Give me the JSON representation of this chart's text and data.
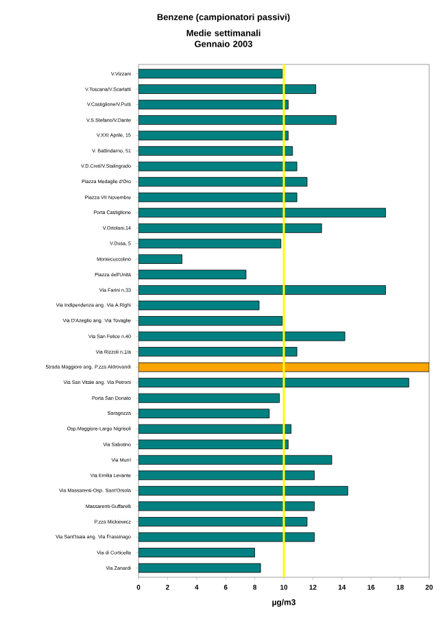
{
  "chart_data": {
    "type": "bar",
    "orientation": "horizontal",
    "title": "Benzene (campionatori passivi)",
    "subtitle": "Medie settimanali Gennaio 2003",
    "xlabel": "µg/m3",
    "categories": [
      "V.Vizzani",
      "V.Toscana/V.Scarlatti",
      "V.Castiglione/V.Putti",
      "V.S.Stefano/V.Dante",
      "V.XXI Aprile, 15",
      "V. Battindarno, 51",
      "V.D.Creti/V.Stalingrado",
      "Piazza Medaglie d'Oro",
      "Piazza VII Novembre",
      "Porta Castiglione",
      "V.Ortolani,14",
      "V.Dusa, 5",
      "Montecuccolino",
      "Piazza dell'Unità",
      "Via Farini n.33",
      "Via Indipendenza ang. Via A.Righi",
      "Via D'Azeglio ang. Via Tovaglie",
      "Via San Felice n.40",
      "Via Rizzoli n.1/a",
      "Strada Maggiore ang. P.zza Aldrovandi",
      "Via San Vitale ang. Via Petroni",
      "Porta San Donato",
      "Saragozza",
      "Osp.Maggiore-Largo Nigrisoli",
      "Via Sabotino",
      "Via Murri",
      "Via Emilia Levante",
      "Via Massarenti-Osp. Sant'Orsola",
      "Massarenti-Guffarelli",
      "P.zza Mickiewicz",
      "Via Sant'Isaia ang. Via Frassinago",
      "Via di Corticella",
      "Via Zanardi"
    ],
    "values": [
      9.9,
      12.2,
      10.3,
      13.6,
      10.3,
      10.6,
      10.9,
      11.6,
      10.9,
      17.0,
      12.6,
      9.8,
      3.0,
      7.4,
      17.0,
      8.3,
      9.9,
      14.2,
      10.9,
      20.0,
      18.6,
      9.7,
      9.0,
      10.5,
      10.3,
      13.3,
      12.1,
      14.4,
      12.1,
      11.6,
      12.1,
      8.0,
      8.4
    ],
    "colors": [
      "#008080",
      "#008080",
      "#008080",
      "#008080",
      "#008080",
      "#008080",
      "#008080",
      "#008080",
      "#008080",
      "#008080",
      "#008080",
      "#008080",
      "#008080",
      "#008080",
      "#008080",
      "#008080",
      "#008080",
      "#008080",
      "#008080",
      "#ffa500",
      "#008080",
      "#008080",
      "#008080",
      "#008080",
      "#008080",
      "#008080",
      "#008080",
      "#008080",
      "#008080",
      "#008080",
      "#008080",
      "#008080",
      "#008080"
    ],
    "xlim": [
      0,
      20
    ],
    "xticks": [
      0,
      2,
      4,
      6,
      8,
      10,
      12,
      14,
      16,
      18,
      20
    ],
    "ref_lines": [
      {
        "axis": "x",
        "value": 10,
        "color": "#ffff00"
      }
    ],
    "grid": false
  }
}
